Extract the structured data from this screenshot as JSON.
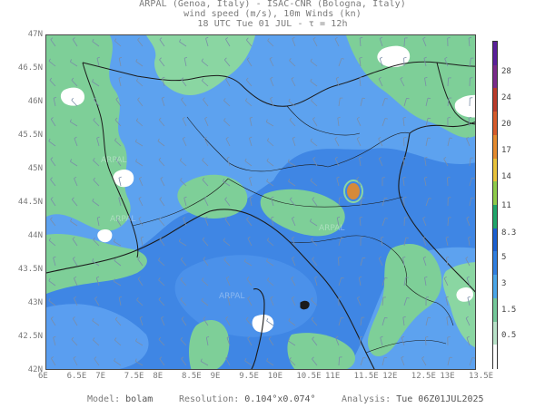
{
  "header": {
    "line1": "ARPAL (Genoa, Italy)  -  ISAC-CNR (Bologna, Italy)",
    "line2": "wind speed (m/s), 10m Winds (kn)",
    "line3": "18 UTC Tue 01 JUL  -  τ = 12h"
  },
  "map": {
    "lat_labels": [
      "47N",
      "46.5N",
      "46N",
      "45.5N",
      "45N",
      "44.5N",
      "44N",
      "43.5N",
      "43N",
      "42.5N",
      "42N"
    ],
    "lon_labels": [
      "6E",
      "6.5E",
      "7E",
      "7.5E",
      "8E",
      "8.5E",
      "9E",
      "9.5E",
      "10E",
      "10.5E",
      "11E",
      "11.5E",
      "12E",
      "12.5E",
      "13E",
      "13.5E"
    ],
    "watermark": "ARPAL",
    "colors": {
      "sea_blue": "#3d7fe0",
      "mid_blue": "#5a9ff0",
      "light_blue": "#74b6f4",
      "green": "#7fcf9a",
      "pale_green": "#a9dfb4",
      "white": "#ffffff",
      "orange": "#d58a3a"
    }
  },
  "colorbar": {
    "labels": [
      "28",
      "24",
      "20",
      "17",
      "14",
      "11",
      "8.3",
      "5",
      "3",
      "1.5",
      "0.5"
    ],
    "colors": [
      "#ffffff",
      "#b8e2c8",
      "#74c89a",
      "#4aa6e8",
      "#2f7ee0",
      "#1a5fcf",
      "#1fa56a",
      "#8ecb4a",
      "#e8c23a",
      "#e48a2e",
      "#d65a2a",
      "#b83a2a",
      "#7a2a8a",
      "#5a1f9a"
    ]
  },
  "footer": {
    "model_label": "Model:",
    "model_value": "bolam",
    "resolution_label": "Resolution:",
    "resolution_value": "0.104°x0.074°",
    "analysis_label": "Analysis:",
    "analysis_value": "Tue 06Z01JUL2025"
  }
}
